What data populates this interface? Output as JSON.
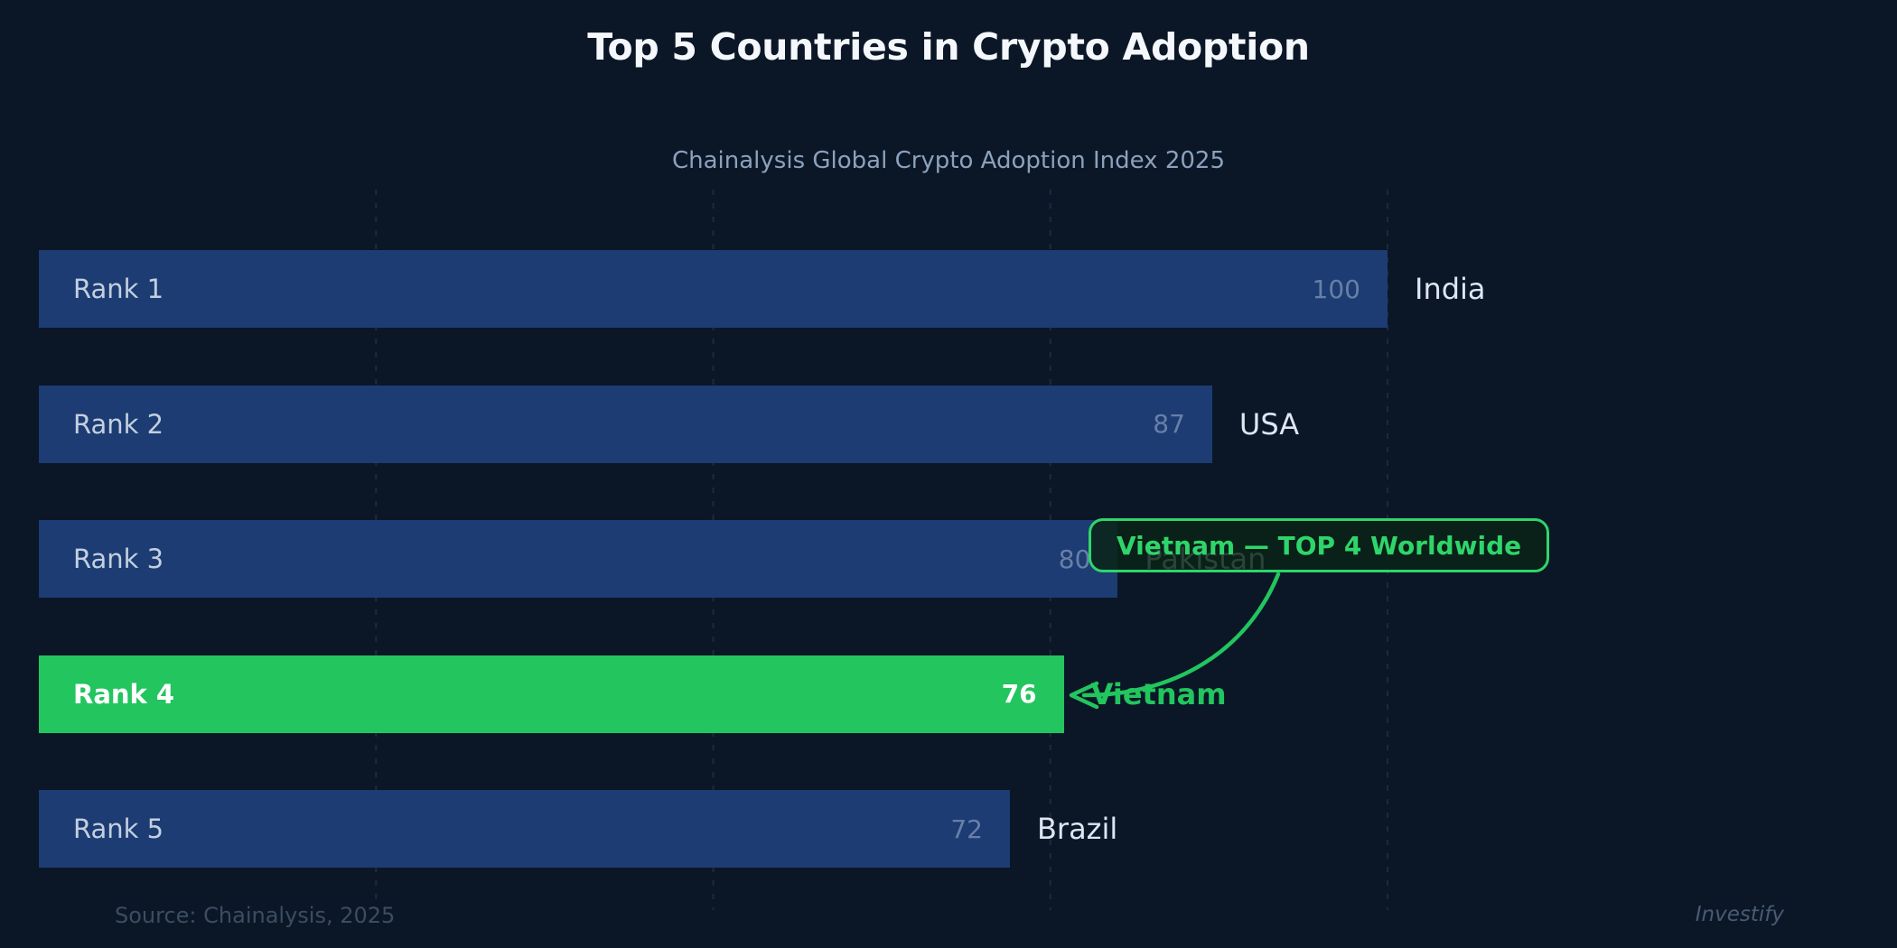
{
  "chart_data": {
    "type": "bar",
    "orientation": "horizontal",
    "title": "Top 5 Countries in Crypto Adoption",
    "subtitle": "Chainalysis Global Crypto Adoption Index 2025",
    "xlim": [
      0,
      100
    ],
    "grid": true,
    "gridline_values": [
      25,
      50,
      75,
      100
    ],
    "rows": [
      {
        "rank_label": "Rank 1",
        "country": "India",
        "value": 100,
        "highlight": false
      },
      {
        "rank_label": "Rank 2",
        "country": "USA",
        "value": 87,
        "highlight": false
      },
      {
        "rank_label": "Rank 3",
        "country": "Pakistan",
        "value": 80,
        "highlight": false
      },
      {
        "rank_label": "Rank 4",
        "country": "Vietnam",
        "value": 76,
        "highlight": true
      },
      {
        "rank_label": "Rank 5",
        "country": "Brazil",
        "value": 72,
        "highlight": false
      }
    ],
    "callout": {
      "text": "Vietnam — TOP 4 Worldwide",
      "target_country": "Vietnam"
    },
    "source": "Source: Chainalysis, 2025",
    "watermark": "Investify",
    "colors": {
      "background": "#0b1726",
      "bar": "#1c3c73",
      "highlight_bar": "#22c55e",
      "highlight_text": "#22c55e",
      "callout_border": "#2fd56b",
      "title_text": "#f4f7fb",
      "subtitle_text": "#8ca1bd",
      "rank_text": "#c3cfdf",
      "country_text": "#dde6f2",
      "source_text": "#3c4c62",
      "watermark_text": "#4a5a73"
    }
  }
}
